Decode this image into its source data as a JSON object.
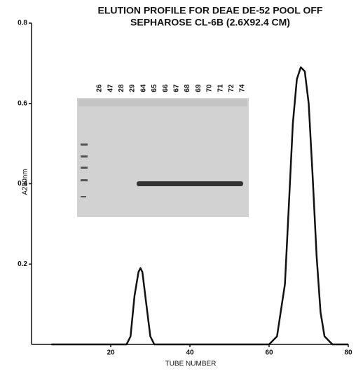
{
  "chart_data": {
    "type": "line",
    "title": "ELUTION PROFILE FOR DEAE DE-52 POOL OFF",
    "subtitle": "SEPHAROSE CL-6B (2.6X92.4 CM)",
    "x_label": "TUBE NUMBER",
    "y_label": "A280nm",
    "x": [
      5,
      24,
      25,
      26,
      27,
      27.5,
      28,
      29,
      30,
      31,
      60,
      62,
      64,
      65,
      66,
      67,
      68,
      69,
      70,
      71,
      72,
      73,
      74,
      76,
      80
    ],
    "values": [
      0,
      0,
      0.02,
      0.12,
      0.18,
      0.19,
      0.18,
      0.1,
      0.02,
      0,
      0,
      0.02,
      0.15,
      0.35,
      0.55,
      0.66,
      0.69,
      0.68,
      0.6,
      0.42,
      0.22,
      0.08,
      0.02,
      0,
      0
    ],
    "color": "#111111",
    "xlim": [
      0,
      80
    ],
    "xticks": [
      20,
      40,
      60,
      80
    ],
    "ylim": [
      0,
      0.8
    ],
    "yticks": [
      0.2,
      0.4,
      0.6,
      0.8
    ],
    "inset_lanes": [
      "26",
      "47",
      "28",
      "29",
      "64",
      "65",
      "66",
      "67",
      "68",
      "69",
      "70",
      "71",
      "72",
      "74"
    ]
  }
}
